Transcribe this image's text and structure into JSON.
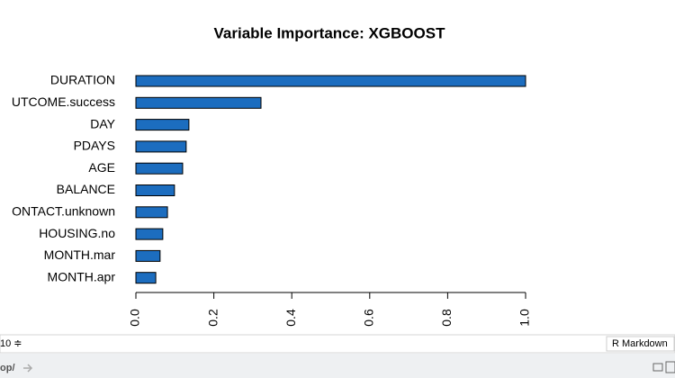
{
  "chart_data": {
    "type": "barh",
    "title": "Variable Importance: XGBOOST",
    "categories": [
      "DURATION",
      "UTCOME.success",
      "DAY",
      "PDAYS",
      "AGE",
      "BALANCE",
      "ONTACT.unknown",
      "HOUSING.no",
      "MONTH.mar",
      "MONTH.apr"
    ],
    "values": [
      1.0,
      0.321,
      0.136,
      0.129,
      0.12,
      0.099,
      0.081,
      0.069,
      0.062,
      0.051
    ],
    "color": "#1c6dbf",
    "xlim": [
      0,
      1
    ],
    "xticks": [
      {
        "value": 0,
        "label": "0.0"
      },
      {
        "value": 0.2,
        "label": "0.2"
      },
      {
        "value": 0.4,
        "label": "0.4"
      },
      {
        "value": 0.6,
        "label": "0.6"
      },
      {
        "value": 0.8,
        "label": "0.8"
      },
      {
        "value": 1,
        "label": "1.0"
      }
    ]
  },
  "ui": {
    "status_left": "10 ≑",
    "status_right": "R Markdown",
    "path": "op/"
  }
}
